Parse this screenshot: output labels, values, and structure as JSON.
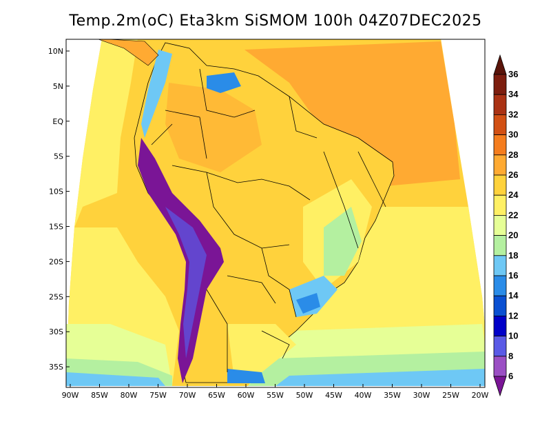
{
  "title": "Temp.2m(oC) Eta3km SiSMOM 100h 04Z07DEC2025",
  "map": {
    "lat_labels": [
      "10N",
      "5N",
      "EQ",
      "5S",
      "10S",
      "15S",
      "20S",
      "25S",
      "30S",
      "35S"
    ],
    "lon_labels": [
      "90W",
      "85W",
      "80W",
      "75W",
      "70W",
      "65W",
      "60W",
      "55W",
      "50W",
      "45W",
      "40W",
      "35W",
      "30W",
      "25W",
      "20W"
    ]
  },
  "colorbar": {
    "levels": [
      "6",
      "8",
      "10",
      "12",
      "14",
      "16",
      "18",
      "20",
      "22",
      "24",
      "26",
      "28",
      "30",
      "32",
      "34",
      "36"
    ],
    "colors": [
      "#7a1596",
      "#9b4fc4",
      "#5a5ae6",
      "#0000c8",
      "#0a50d2",
      "#2a8ce8",
      "#6ec8f5",
      "#b4f0a0",
      "#e6ff96",
      "#fff064",
      "#ffd23c",
      "#ffaa32",
      "#f57d1e",
      "#d25014",
      "#aa3214",
      "#7d1e0f",
      "#5a140a"
    ]
  }
}
